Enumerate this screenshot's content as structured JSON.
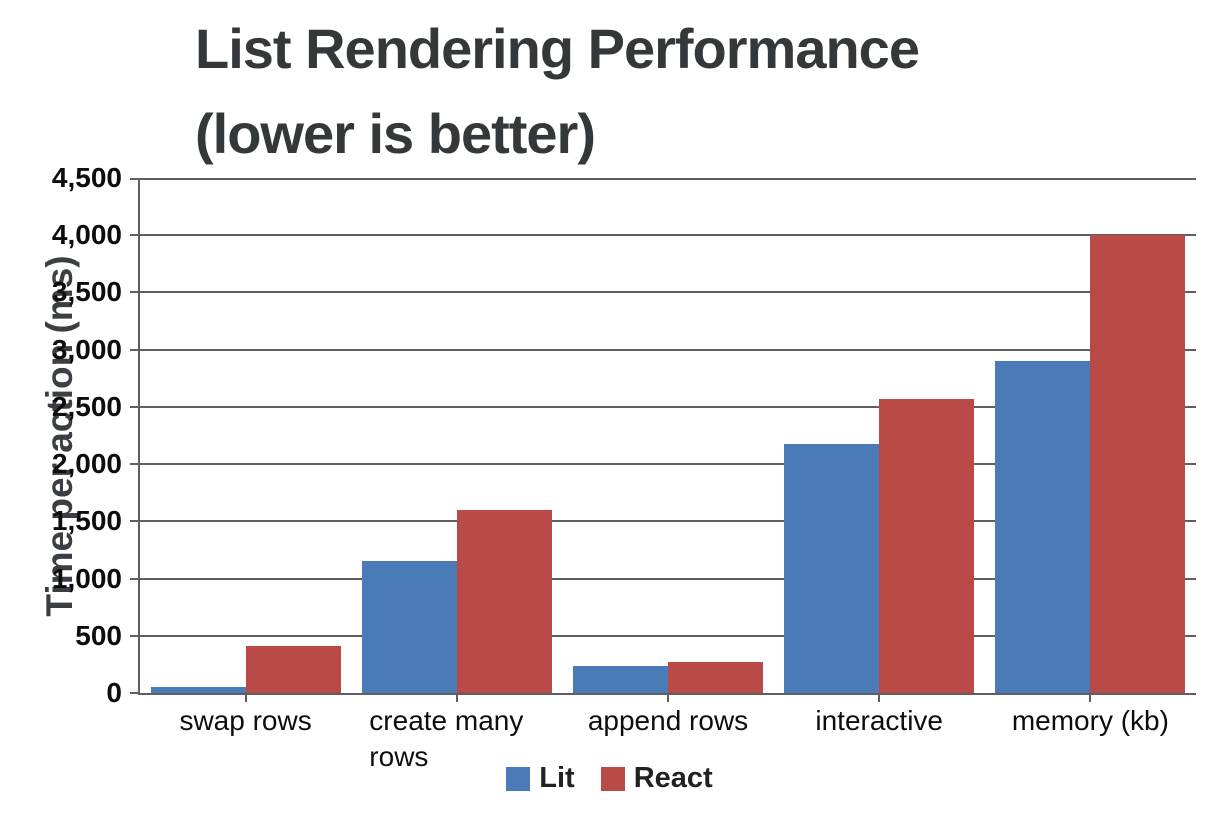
{
  "title": {
    "line1": "List Rendering Performance",
    "line2": "(lower is better)",
    "color": "#35383b"
  },
  "chart_data": {
    "type": "bar",
    "title": "List Rendering Performance (lower is better)",
    "categories": [
      "swap rows",
      "create many rows",
      "append rows",
      "interactive",
      "memory (kb)"
    ],
    "series": [
      {
        "name": "Lit",
        "color": "#4a7bb7",
        "values": [
          50,
          1150,
          240,
          2180,
          2900
        ]
      },
      {
        "name": "React",
        "color": "#b94a48",
        "values": [
          410,
          1600,
          275,
          2570,
          4000
        ]
      }
    ],
    "xlabel": "",
    "ylabel": "Time per action (ms)",
    "ylim": [
      0,
      4500
    ],
    "ytick_step": 500,
    "ytick_labels": [
      "0",
      "500",
      "1,000",
      "1,500",
      "2,000",
      "2,500",
      "3,000",
      "3,500",
      "4,000",
      "4,500"
    ],
    "grid": true,
    "legend_position": "bottom"
  },
  "styles": {
    "grid_color": "#5f5f5f",
    "axis_color": "#5f5f5f",
    "tick_text_color": "#0d0d0d",
    "category_text_color": "#0d0d0d",
    "legend_text_color": "#1f2123",
    "axis_title_color": "#3b3e42",
    "background": "#ffffff"
  }
}
